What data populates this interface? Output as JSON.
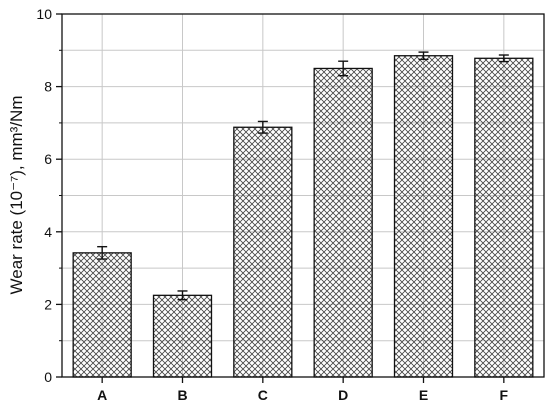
{
  "chart_data": {
    "type": "bar",
    "categories": [
      "A",
      "B",
      "C",
      "D",
      "E",
      "F"
    ],
    "values": [
      3.42,
      2.25,
      6.88,
      8.5,
      8.85,
      8.78
    ],
    "errors": [
      0.17,
      0.12,
      0.16,
      0.2,
      0.1,
      0.09
    ],
    "ylabel": "Wear rate (10⁻⁷), mm³/Nm",
    "ylim": [
      0,
      10
    ],
    "yticks": [
      "0",
      "2",
      "4",
      "6",
      "8",
      "10"
    ],
    "xticks": [
      "A",
      "B",
      "C",
      "D",
      "E",
      "F"
    ],
    "grid": true,
    "bar_fill": "cross-hatch",
    "colors": {
      "bar_edge": "#111111",
      "hatch": "#444444",
      "grid": "#c8c8c8",
      "axis": "#111111"
    }
  }
}
